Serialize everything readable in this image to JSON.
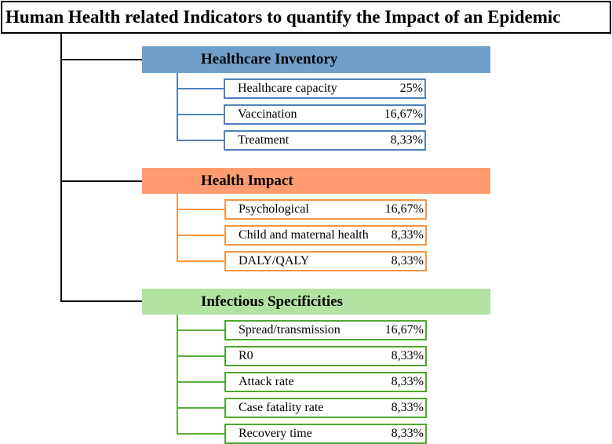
{
  "title": "Human Health related Indicators to quantify the Impact of an Epidemic",
  "colors": {
    "healthcare_fill": "#6f9fcb",
    "health_impact_fill": "#ff9b71",
    "infectious_fill": "#b3e3a3",
    "blue_border": "#4f81bd",
    "orange_border": "#f79646",
    "green_border": "#4ea72e"
  },
  "categories": [
    {
      "name": "Healthcare Inventory",
      "items": [
        {
          "label": "Healthcare capacity",
          "value": "25%"
        },
        {
          "label": "Vaccination",
          "value": "16,67%"
        },
        {
          "label": "Treatment",
          "value": "8,33%"
        }
      ]
    },
    {
      "name": "Health Impact",
      "items": [
        {
          "label": "Psychological",
          "value": "16,67%"
        },
        {
          "label": "Child and maternal health",
          "value": "8,33%"
        },
        {
          "label": "DALY/QALY",
          "value": "8,33%"
        }
      ]
    },
    {
      "name": "Infectious Specificities",
      "items": [
        {
          "label": "Spread/transmission",
          "value": "16,67%"
        },
        {
          "label": "R0",
          "value": "8,33%"
        },
        {
          "label": "Attack rate",
          "value": "8,33%"
        },
        {
          "label": "Case fatality rate",
          "value": "8,33%"
        },
        {
          "label": "Recovery time",
          "value": "8,33%"
        }
      ]
    }
  ]
}
